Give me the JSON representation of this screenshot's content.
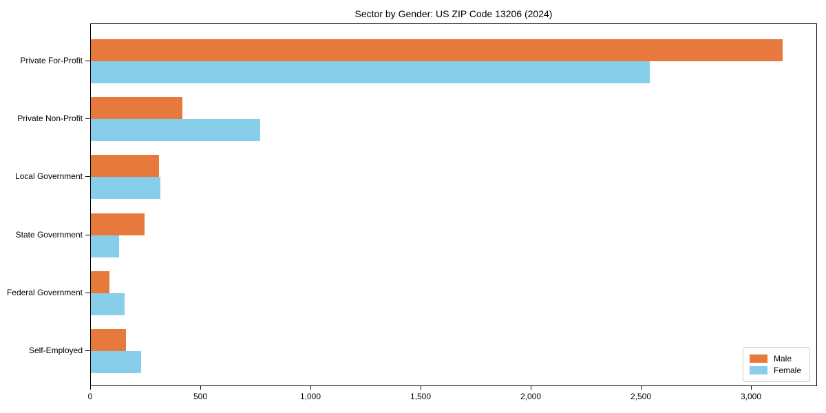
{
  "title": "Sector by Gender: US ZIP Code 13206 (2024)",
  "colors": {
    "male": "#E8793D",
    "female": "#87CEEB",
    "axis": "#000000",
    "legend_border": "#CCCCCC",
    "background": "#FFFFFF"
  },
  "legend": {
    "position": "lower right",
    "entries": [
      "Male",
      "Female"
    ]
  },
  "chart_data": {
    "type": "bar",
    "orientation": "horizontal",
    "title": "Sector by Gender: US ZIP Code 13206 (2024)",
    "xlabel": "",
    "ylabel": "",
    "categories": [
      "Private For-Profit",
      "Private Non-Profit",
      "Local Government",
      "State Government",
      "Federal Government",
      "Self-Employed"
    ],
    "series": [
      {
        "name": "Male",
        "color": "#E8793D",
        "values": [
          3141,
          414,
          310,
          243,
          84,
          158
        ]
      },
      {
        "name": "Female",
        "color": "#87CEEB",
        "values": [
          2536,
          768,
          314,
          127,
          154,
          227
        ]
      }
    ],
    "xlim": [
      0,
      3300
    ],
    "xticks": [
      0,
      500,
      1000,
      1500,
      2000,
      2500,
      3000
    ],
    "xtick_labels": [
      "0",
      "500",
      "1,000",
      "1,500",
      "2,000",
      "2,500",
      "3,000"
    ],
    "grid": false,
    "legend_position": "lower right"
  }
}
